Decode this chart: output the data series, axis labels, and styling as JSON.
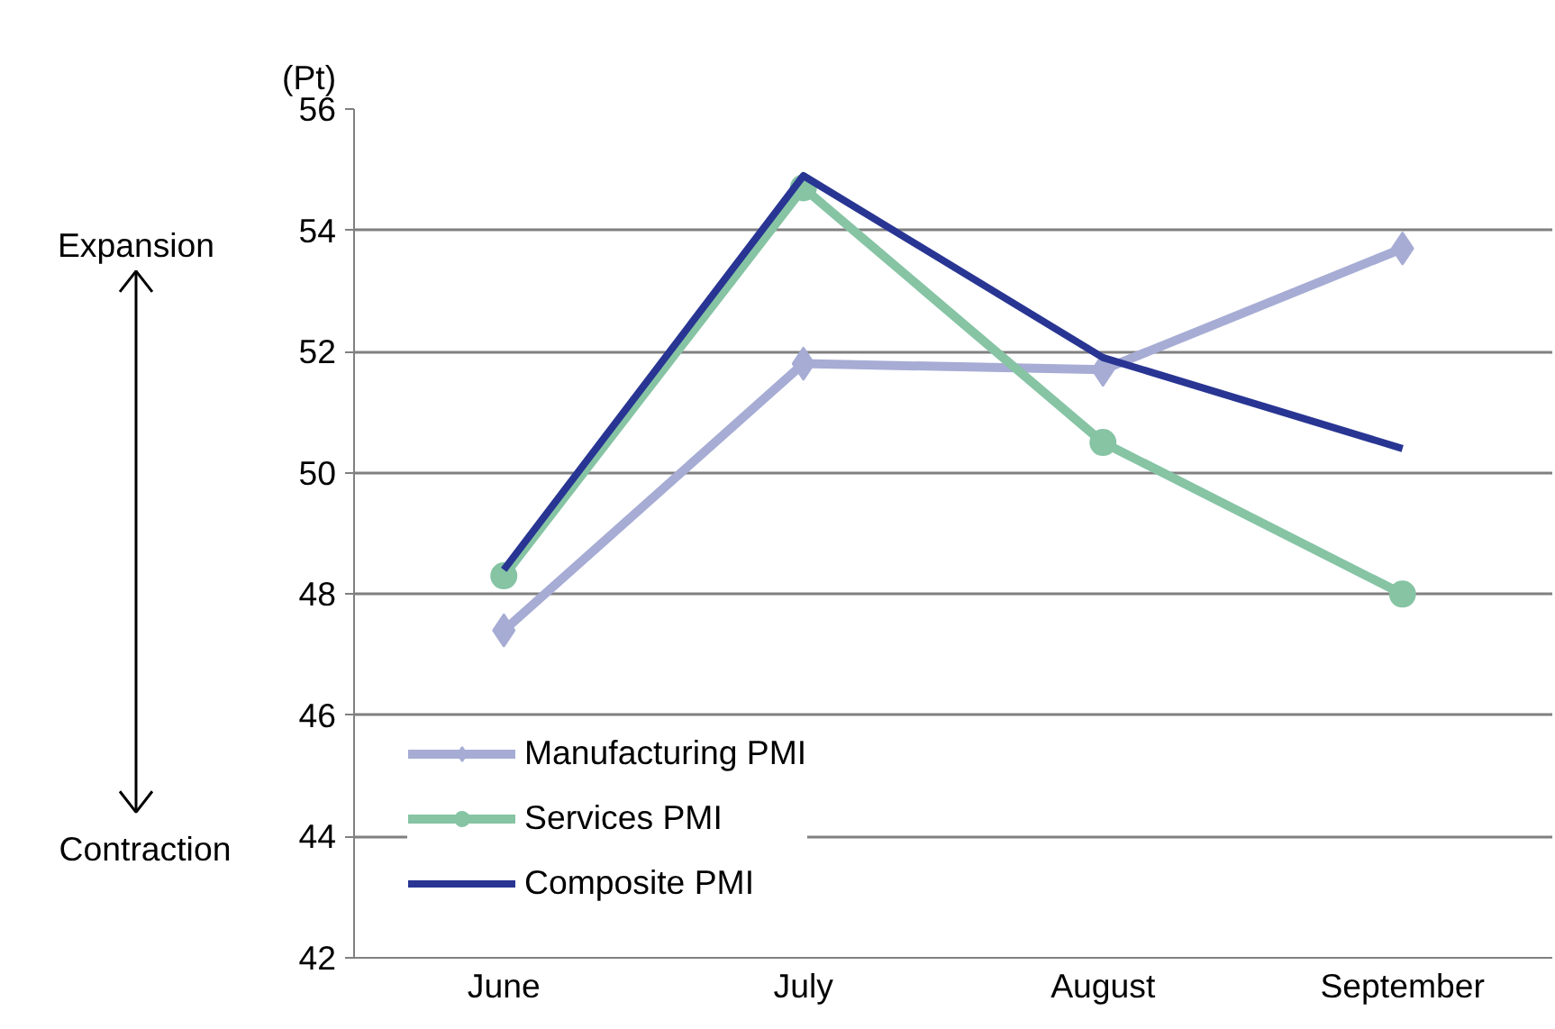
{
  "chart_data": {
    "type": "line",
    "categories": [
      "June",
      "July",
      "August",
      "September"
    ],
    "ylabel": "(Pt)",
    "ylim": [
      42,
      56
    ],
    "yticks": [
      42,
      44,
      46,
      48,
      50,
      52,
      54,
      56
    ],
    "grid": "y",
    "legend": "bottom left",
    "annotations": [
      "Expansion",
      "Contraction"
    ],
    "series": [
      {
        "name": "Manufacturing PMI",
        "color": "#a6acd4",
        "marker": "diamond",
        "values": [
          47.4,
          51.8,
          51.7,
          53.7
        ]
      },
      {
        "name": "Services PMI",
        "color": "#86c4a4",
        "marker": "circle",
        "values": [
          48.3,
          54.7,
          50.5,
          48.0
        ]
      },
      {
        "name": "Composite PMI",
        "color": "#283593",
        "marker": "none",
        "values": [
          48.4,
          54.9,
          51.9,
          50.4
        ]
      }
    ]
  }
}
